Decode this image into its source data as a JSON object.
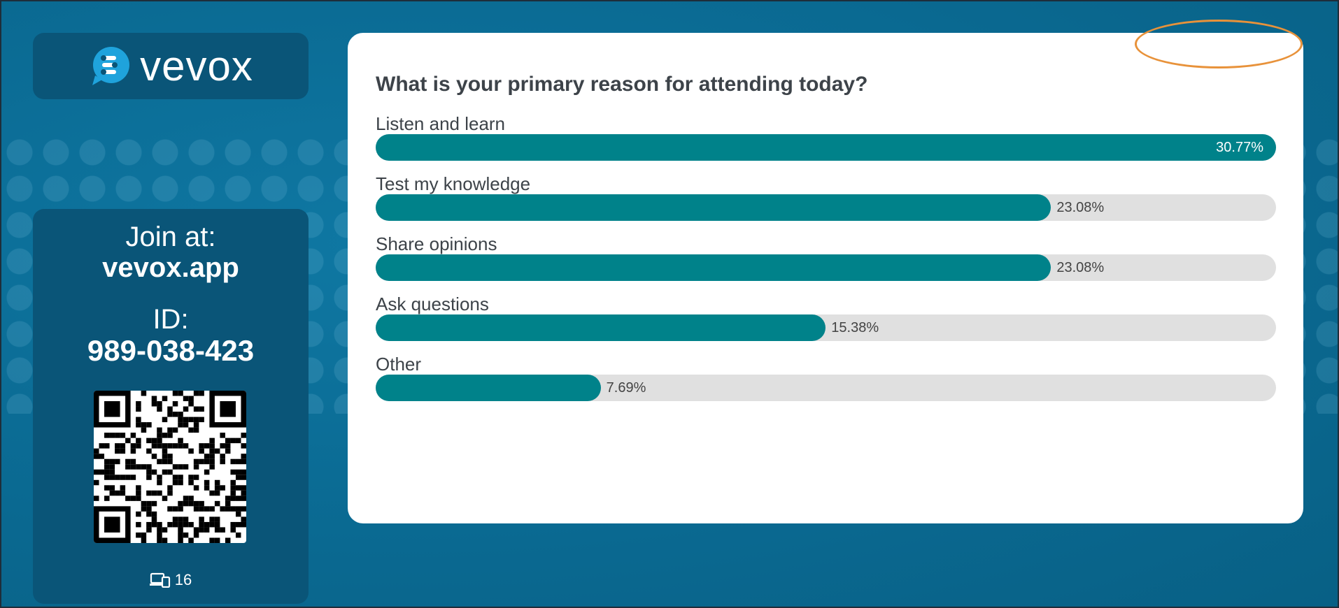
{
  "brand": {
    "name": "vevox"
  },
  "join": {
    "label": "Join at:",
    "url": "vevox.app",
    "id_label": "ID:",
    "id_value": "989-038-423",
    "participant_count": "16"
  },
  "colors": {
    "bar": "#00828a",
    "track": "#e0e0e0",
    "background": "#0b6c95",
    "panel": "#0a5578",
    "highlight": "#e8923a"
  },
  "icons": {
    "participants": "devices-icon",
    "logo": "vevox-logo-icon"
  },
  "poll": {
    "question": "What is your primary reason for attending today?",
    "options": [
      {
        "label": "Listen and learn",
        "percent_text": "30.77%",
        "percent": 30.77
      },
      {
        "label": "Test my knowledge",
        "percent_text": "23.08%",
        "percent": 23.08
      },
      {
        "label": "Share opinions",
        "percent_text": "23.08%",
        "percent": 23.08
      },
      {
        "label": "Ask questions",
        "percent_text": "15.38%",
        "percent": 15.38
      },
      {
        "label": "Other",
        "percent_text": "7.69%",
        "percent": 7.69
      }
    ]
  }
}
